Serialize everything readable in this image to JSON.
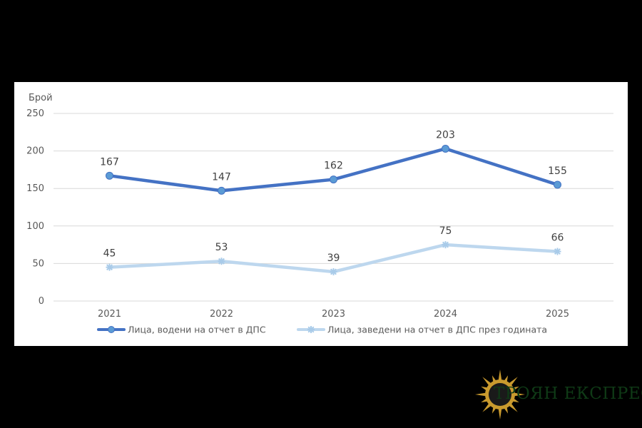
{
  "chart_data": {
    "type": "line",
    "ylabel": "Брой",
    "categories": [
      "2021",
      "2022",
      "2023",
      "2024",
      "2025"
    ],
    "ylim": [
      0,
      250
    ],
    "yticks": [
      0,
      50,
      100,
      150,
      200,
      250
    ],
    "grid": true,
    "legend_position": "bottom",
    "series": [
      {
        "name": "Лица, водени на отчет в ДПС",
        "values": [
          167,
          147,
          162,
          203,
          155
        ],
        "color": "#4472c4",
        "marker": "circle"
      },
      {
        "name": "Лица, заведени на отчет в ДПС през годината",
        "values": [
          45,
          53,
          39,
          75,
          66
        ],
        "color": "#bdd7ee",
        "marker": "star"
      }
    ]
  },
  "logo": {
    "text": "ТРОЯН ЕКСПРЕС",
    "icon": "sun-icon",
    "text_color": "#0f3a16",
    "icon_color": "#c99a2e"
  }
}
